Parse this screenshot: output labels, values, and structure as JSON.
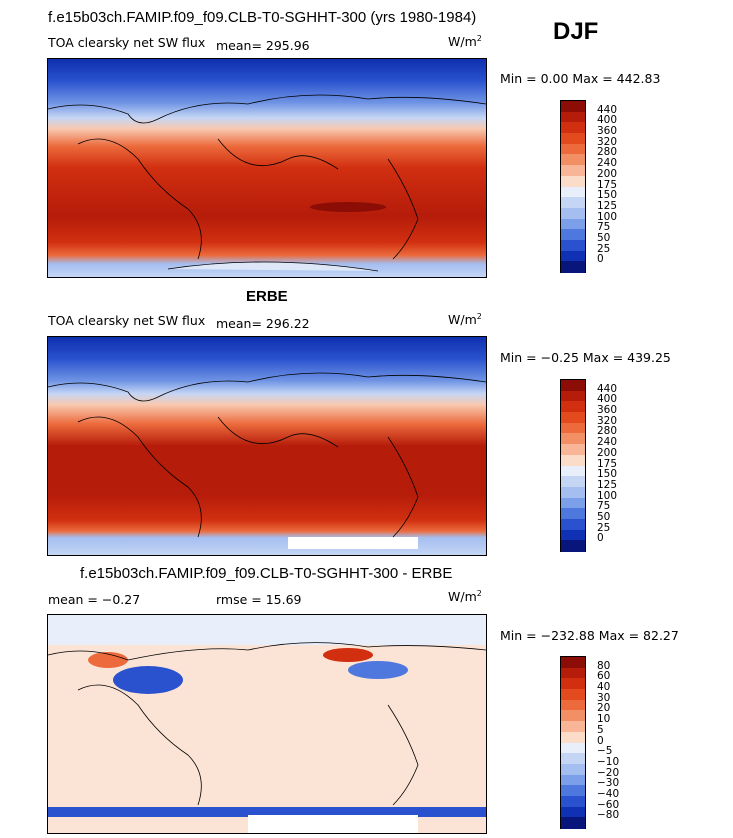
{
  "season": "DJF",
  "panels": [
    {
      "title": "f.e15b03ch.FAMIP.f09_f09.CLB-T0-SGHHT-300 (yrs 1980-1984)",
      "variable": "TOA clearsky net SW flux",
      "mean": "mean= 295.96",
      "units_base": "W/m",
      "units_exp": "2",
      "minmax": "Min =    0.00 Max = 442.83",
      "colorbar": {
        "labels": [
          "440",
          "400",
          "360",
          "320",
          "280",
          "240",
          "200",
          "175",
          "150",
          "125",
          "100",
          "75",
          "50",
          "25",
          "0"
        ],
        "colors": [
          "#8b0d05",
          "#b51c0a",
          "#d12f10",
          "#e34a1e",
          "#ec6a3c",
          "#f38f64",
          "#f8b597",
          "#fbdcc8",
          "#e8eefa",
          "#c5d6f5",
          "#a4bef0",
          "#7b9fe9",
          "#4f78de",
          "#2a52ce",
          "#1031b4",
          "#08157a"
        ]
      }
    },
    {
      "title": "ERBE",
      "variable": "TOA clearsky net SW flux",
      "mean": "mean= 296.22",
      "units_base": "W/m",
      "units_exp": "2",
      "minmax": "Min =  −0.25 Max = 439.25",
      "colorbar": {
        "labels": [
          "440",
          "400",
          "360",
          "320",
          "280",
          "240",
          "200",
          "175",
          "150",
          "125",
          "100",
          "75",
          "50",
          "25",
          "0"
        ],
        "colors": [
          "#8b0d05",
          "#b51c0a",
          "#d12f10",
          "#e34a1e",
          "#ec6a3c",
          "#f38f64",
          "#f8b597",
          "#fbdcc8",
          "#e8eefa",
          "#c5d6f5",
          "#a4bef0",
          "#7b9fe9",
          "#4f78de",
          "#2a52ce",
          "#1031b4",
          "#08157a"
        ]
      }
    },
    {
      "title": "f.e15b03ch.FAMIP.f09_f09.CLB-T0-SGHHT-300 - ERBE",
      "mean": "mean =   −0.27",
      "rmse": "rmse =   15.69",
      "units_base": "W/m",
      "units_exp": "2",
      "minmax": "Min = −232.88 Max =  82.27",
      "colorbar": {
        "labels": [
          "80",
          "60",
          "40",
          "30",
          "20",
          "10",
          "5",
          "0",
          "−5",
          "−10",
          "−20",
          "−30",
          "−40",
          "−60",
          "−80"
        ],
        "colors": [
          "#8b0d05",
          "#b51c0a",
          "#d12f10",
          "#e34a1e",
          "#ec6a3c",
          "#f38f64",
          "#f8b597",
          "#fbdcc8",
          "#e8eefa",
          "#c5d6f5",
          "#a4bef0",
          "#7b9fe9",
          "#4f78de",
          "#2a52ce",
          "#1031b4",
          "#08157a"
        ]
      }
    }
  ]
}
